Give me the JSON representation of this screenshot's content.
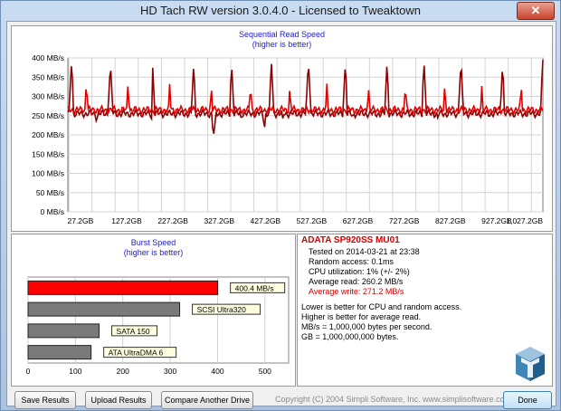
{
  "window": {
    "title": "HD Tach RW version 3.0.4.0 - Licensed to Tweaktown",
    "close_glyph": "✕"
  },
  "sequential": {
    "title": "Sequential Read Speed",
    "subtitle": "(higher is better)"
  },
  "burst": {
    "title": "Burst Speed",
    "subtitle": "(higher is better)"
  },
  "info": {
    "drive": "ADATA SP920SS MU01",
    "tested_on": "Tested on 2014-03-21 at 23:38",
    "random_access": "Random access: 0.1ms",
    "cpu": "CPU utilization: 1% (+/- 2%)",
    "avg_read": "Average read: 260.2 MB/s",
    "avg_write": "Average write: 271.2 MB/s",
    "note1": "Lower is better for CPU and random access.",
    "note2": "Higher is better for average read.",
    "note3": "MB/s = 1,000,000 bytes per second.",
    "note4": "GB = 1,000,000,000 bytes."
  },
  "footer": {
    "save": "Save Results",
    "upload": "Upload Results",
    "compare": "Compare Another Drive",
    "copyright": "Copyright (C) 2004 Simpli Software, Inc. www.simplisoftware.com",
    "done": "Done"
  },
  "colors": {
    "read": "#8b0000",
    "write": "#e00000",
    "bar_self": "#ff0000",
    "bar_ref": "#7a7a7a",
    "title_blue": "#2020d0"
  },
  "chart_data": [
    {
      "type": "line",
      "title": "Sequential Read Speed",
      "subtitle": "(higher is better)",
      "x_tick_labels": [
        "27.2GB",
        "127.2GB",
        "227.2GB",
        "327.2GB",
        "427.2GB",
        "527.2GB",
        "627.2GB",
        "727.2GB",
        "827.2GB",
        "927.2GB",
        "1,027.2GB"
      ],
      "y_tick_labels": [
        "0 MB/s",
        "50 MB/s",
        "100 MB/s",
        "150 MB/s",
        "200 MB/s",
        "250 MB/s",
        "300 MB/s",
        "350 MB/s",
        "400 MB/s"
      ],
      "xlim": [
        0,
        1027.2
      ],
      "ylim": [
        0,
        400
      ],
      "x_unit": "GB",
      "y_unit": "MB/s",
      "grid": true,
      "series": [
        {
          "key": "read",
          "color": "#8b0000",
          "baseline": 255,
          "spikes": [
            {
              "x": 8,
              "y": 395
            },
            {
              "x": 92,
              "y": 390
            },
            {
              "x": 183,
              "y": 385
            },
            {
              "x": 272,
              "y": 385
            },
            {
              "x": 354,
              "y": 385
            },
            {
              "x": 440,
              "y": 390
            },
            {
              "x": 520,
              "y": 395
            },
            {
              "x": 600,
              "y": 390
            },
            {
              "x": 690,
              "y": 385
            },
            {
              "x": 770,
              "y": 390
            },
            {
              "x": 850,
              "y": 395
            },
            {
              "x": 940,
              "y": 385
            },
            {
              "x": 1027,
              "y": 400
            }
          ],
          "dips": [
            {
              "x": 62,
              "y": 228
            },
            {
              "x": 180,
              "y": 232
            },
            {
              "x": 315,
              "y": 198
            },
            {
              "x": 375,
              "y": 238
            },
            {
              "x": 425,
              "y": 215
            },
            {
              "x": 465,
              "y": 240
            },
            {
              "x": 615,
              "y": 238
            },
            {
              "x": 800,
              "y": 242
            }
          ]
        },
        {
          "key": "write",
          "color": "#e00000",
          "baseline": 265,
          "spikes": [
            {
              "x": 40,
              "y": 340
            },
            {
              "x": 130,
              "y": 335
            },
            {
              "x": 220,
              "y": 335
            },
            {
              "x": 310,
              "y": 330
            },
            {
              "x": 395,
              "y": 335
            },
            {
              "x": 480,
              "y": 330
            },
            {
              "x": 560,
              "y": 335
            },
            {
              "x": 650,
              "y": 330
            },
            {
              "x": 730,
              "y": 335
            },
            {
              "x": 815,
              "y": 335
            },
            {
              "x": 895,
              "y": 330
            },
            {
              "x": 980,
              "y": 335
            }
          ],
          "dips": []
        }
      ]
    },
    {
      "type": "bar",
      "title": "Burst Speed",
      "subtitle": "(higher is better)",
      "orientation": "horizontal",
      "categories": [
        "400.4 MB/s",
        "SCSI Ultra320",
        "SATA 150",
        "ATA UltraDMA 6"
      ],
      "values": [
        400.4,
        320,
        150,
        133
      ],
      "highlight_index": 0,
      "x_tick_labels": [
        "0",
        "100",
        "200",
        "300",
        "400",
        "500"
      ],
      "xlim": [
        0,
        550
      ],
      "grid": true
    }
  ]
}
